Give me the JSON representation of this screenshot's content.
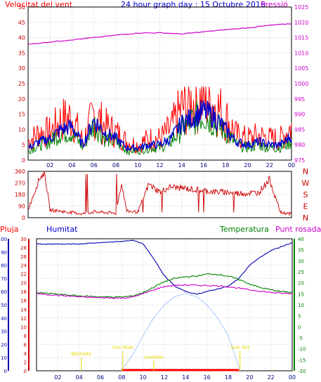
{
  "header": {
    "left_title": "Velocitat del vent",
    "center_title": "24 hour graph day : 15 Octubre 2016",
    "right_title": "Pressió"
  },
  "chart_data": [
    {
      "type": "line",
      "x_ticks": [
        "02",
        "04",
        "06",
        "08",
        "10",
        "12",
        "14",
        "16",
        "18",
        "20",
        "22",
        "00"
      ],
      "left_axis": {
        "ticks": [
          "0",
          "5",
          "10",
          "15",
          "20",
          "25",
          "30",
          "35",
          "40",
          "45",
          "50"
        ],
        "ylim": [
          0,
          50
        ]
      },
      "right_axis": {
        "ticks": [
          "975",
          "980",
          "985",
          "990",
          "995",
          "1000",
          "1005",
          "1010",
          "1015",
          "1020",
          "1025"
        ],
        "ylim": [
          975,
          1025
        ]
      },
      "series": [
        {
          "color": "#ff0000",
          "axis": "left",
          "x": [
            0,
            1,
            2,
            3,
            4,
            5,
            6,
            7,
            8,
            9,
            10,
            11,
            12,
            13,
            14,
            15,
            16,
            17,
            18,
            19,
            20,
            21,
            22,
            23,
            24
          ],
          "values": [
            6,
            9,
            9,
            13,
            14,
            6,
            15,
            11,
            9,
            6,
            5,
            7,
            7,
            10,
            17,
            19,
            20,
            18,
            14,
            8,
            7,
            8,
            7,
            7,
            11
          ]
        },
        {
          "color": "#008000",
          "axis": "left",
          "x": [
            0,
            1,
            2,
            3,
            4,
            5,
            6,
            7,
            8,
            9,
            10,
            11,
            12,
            13,
            14,
            15,
            16,
            17,
            18,
            19,
            20,
            21,
            22,
            23,
            24
          ],
          "values": [
            3,
            5,
            6,
            9,
            9,
            4,
            12,
            7,
            6,
            3,
            3,
            4,
            4,
            6,
            10,
            13,
            15,
            12,
            9,
            5,
            4,
            5,
            4,
            4,
            6
          ]
        },
        {
          "color": "#0000cc",
          "axis": "left",
          "x": [
            0,
            1,
            2,
            3,
            4,
            5,
            6,
            7,
            8,
            9,
            10,
            11,
            12,
            13,
            14,
            15,
            16,
            17,
            18,
            19,
            20,
            21,
            22,
            23,
            24
          ],
          "values": [
            4,
            6,
            7,
            10,
            11,
            5,
            13,
            9,
            7,
            4,
            4,
            5,
            5,
            7,
            12,
            14,
            16,
            14,
            10,
            6,
            5,
            6,
            5,
            5,
            8
          ]
        },
        {
          "color": "#cc00cc",
          "axis": "right",
          "x": [
            0,
            2,
            4,
            6,
            8,
            10,
            12,
            14,
            16,
            18,
            20,
            22,
            24
          ],
          "values": [
            1012.8,
            1013.6,
            1014.3,
            1015.0,
            1015.8,
            1016.5,
            1016.6,
            1016.2,
            1016.9,
            1017.6,
            1018.2,
            1019.0,
            1019.6
          ]
        }
      ]
    },
    {
      "type": "line",
      "x_ticks": [
        "02",
        "04",
        "06",
        "08",
        "10",
        "12",
        "14",
        "16",
        "18",
        "20",
        "22",
        "00"
      ],
      "left_axis": {
        "ticks": [
          "0",
          "90",
          "180",
          "270",
          "360"
        ],
        "ylim": [
          0,
          360
        ]
      },
      "right_labels": [
        "N",
        "W",
        "S",
        "E",
        "N"
      ],
      "series": [
        {
          "color": "#cc0000",
          "axis": "left",
          "x": [
            0,
            1,
            1.5,
            2,
            3,
            4,
            5,
            6,
            7,
            8,
            8.5,
            9,
            10,
            11,
            12,
            13,
            14,
            15,
            16,
            17,
            18,
            19,
            20,
            21,
            22,
            23,
            24
          ],
          "values": [
            60,
            300,
            350,
            60,
            50,
            40,
            30,
            45,
            40,
            35,
            270,
            50,
            45,
            260,
            200,
            240,
            230,
            220,
            210,
            200,
            200,
            190,
            190,
            195,
            300,
            40,
            30
          ]
        }
      ]
    },
    {
      "type": "line",
      "legend": [
        "Pluja",
        "Humitat",
        "Temperatura",
        "Punt rosada"
      ],
      "x_ticks": [
        "02",
        "04",
        "06",
        "08",
        "10",
        "12",
        "14",
        "16",
        "18",
        "20",
        "22",
        "00"
      ],
      "humidity_axis": {
        "ticks": [
          "0",
          "10",
          "20",
          "30",
          "40",
          "50",
          "60",
          "70",
          "80",
          "90",
          "100"
        ],
        "ylim": [
          0,
          100
        ]
      },
      "rain_axis": {
        "ticks": [
          "0",
          "2",
          "4",
          "6",
          "8",
          "10",
          "12",
          "14",
          "16",
          "18",
          "20",
          "22",
          "24",
          "26",
          "28",
          "30"
        ],
        "ylim": [
          0,
          30
        ]
      },
      "temp_axis": {
        "ticks": [
          "-20",
          "-15",
          "-10",
          "-5",
          "0",
          "5",
          "10",
          "15",
          "20",
          "25",
          "30",
          "35",
          "40"
        ],
        "ylim": [
          -20,
          40
        ]
      },
      "annotations": [
        "Baixada",
        "Sun Rise",
        "Lowtide",
        "Sun Set"
      ],
      "series": [
        {
          "color": "#0000aa",
          "axis": "humidity",
          "x": [
            0,
            2,
            4,
            6,
            8,
            9,
            10,
            11,
            12,
            13,
            14,
            15,
            16,
            17,
            18,
            19,
            20,
            21,
            22,
            23,
            24
          ],
          "values": [
            96,
            96,
            96,
            97,
            98,
            99,
            96,
            85,
            72,
            64,
            60,
            58,
            60,
            62,
            64,
            70,
            80,
            86,
            91,
            94,
            97
          ]
        },
        {
          "color": "#008000",
          "axis": "temp",
          "x": [
            0,
            2,
            4,
            6,
            8,
            9,
            10,
            11,
            12,
            13,
            14,
            15,
            16,
            17,
            18,
            19,
            20,
            21,
            22,
            23,
            24
          ],
          "values": [
            15.5,
            14.8,
            14.0,
            13.6,
            13.5,
            14.0,
            15.5,
            18.0,
            20.5,
            22.0,
            22.7,
            23.0,
            24.0,
            23.8,
            23.0,
            21.5,
            19.5,
            17.8,
            16.8,
            16.0,
            15.6
          ]
        },
        {
          "color": "#cc00cc",
          "axis": "temp",
          "x": [
            0,
            2,
            4,
            6,
            8,
            9,
            10,
            11,
            12,
            13,
            14,
            15,
            16,
            17,
            18,
            19,
            20,
            21,
            22,
            23,
            24
          ],
          "values": [
            15.0,
            14.3,
            13.6,
            13.2,
            13.0,
            13.5,
            15.0,
            16.8,
            18.3,
            18.8,
            19.0,
            18.8,
            18.8,
            18.6,
            18.2,
            17.5,
            16.8,
            16.2,
            15.6,
            15.2,
            15.0
          ]
        },
        {
          "color": "#a8c8ff",
          "axis": "temp",
          "x": [
            7.9,
            9,
            10,
            11,
            12,
            13,
            14,
            15,
            16,
            17,
            18,
            19.1
          ],
          "values": [
            -20,
            -13,
            -4,
            4,
            10,
            13.8,
            15,
            13.8,
            10,
            4,
            -4,
            -20
          ]
        },
        {
          "color": "#ff0000",
          "axis": "rain",
          "x": [
            8,
            19
          ],
          "values": [
            0,
            0
          ]
        }
      ]
    }
  ],
  "panel3": {
    "pluja": "Pluja",
    "humitat": "Humitat",
    "temperatura": "Temperatura",
    "punt_rosada": "Punt rosada",
    "baixada": "Baixada",
    "sun_rise": "Sun Rise",
    "lowtide": "Lowtide",
    "sun_set": "Sun Set"
  },
  "colors": {
    "wind_gust": "#ff0000",
    "wind_avg": "#008000",
    "wind_mean": "#0000cc",
    "pressure": "#cc00cc",
    "direction": "#cc0000",
    "humidity": "#0000aa",
    "temperature": "#008000",
    "dewpoint": "#cc00cc",
    "solar": "#a8c8ff",
    "annotation": "#ffff00"
  }
}
